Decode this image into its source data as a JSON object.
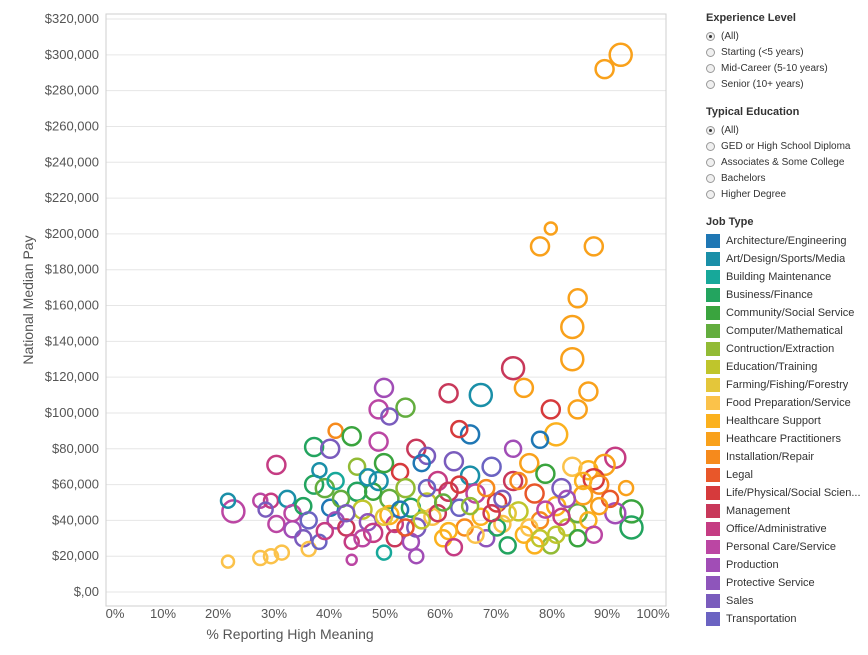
{
  "filters": {
    "experience": {
      "title": "Experience Level",
      "options": [
        "(All)",
        "Starting (<5 years)",
        "Mid-Career (5-10 years)",
        "Senior (10+ years)"
      ],
      "selected": 0
    },
    "education": {
      "title": "Typical Education",
      "options": [
        "(All)",
        "GED or High School Diploma",
        "Associates & Some College",
        "Bachelors",
        "Higher Degree"
      ],
      "selected": 0
    }
  },
  "job_type_legend": {
    "title": "Job Type",
    "items": [
      {
        "label": "Architecture/Engineering",
        "color": "#1f77b4"
      },
      {
        "label": "Art/Design/Sports/Media",
        "color": "#1a8fa8"
      },
      {
        "label": "Building Maintenance",
        "color": "#17a89a"
      },
      {
        "label": "Business/Finance",
        "color": "#23a45f"
      },
      {
        "label": "Community/Social Service",
        "color": "#3aa43e"
      },
      {
        "label": "Computer/Mathematical",
        "color": "#63ad3e"
      },
      {
        "label": "Contruction/Extraction",
        "color": "#92bb35"
      },
      {
        "label": "Education/Training",
        "color": "#bfc52c"
      },
      {
        "label": "Farming/Fishing/Forestry",
        "color": "#e4c63a"
      },
      {
        "label": "Food Preparation/Service",
        "color": "#fbc24a"
      },
      {
        "label": "Healthcare Support",
        "color": "#fbb11e"
      },
      {
        "label": "Heathcare Practitioners",
        "color": "#f9a11b"
      },
      {
        "label": "Installation/Repair",
        "color": "#f68a1c"
      },
      {
        "label": "Legal",
        "color": "#e8572a"
      },
      {
        "label": "Life/Physical/Social Scien...",
        "color": "#d63a3c"
      },
      {
        "label": "Management",
        "color": "#c8385a"
      },
      {
        "label": "Office/Administrative",
        "color": "#c53c83"
      },
      {
        "label": "Personal Care/Service",
        "color": "#bb46a3"
      },
      {
        "label": "Production",
        "color": "#a14db6"
      },
      {
        "label": "Protective Service",
        "color": "#8e55bb"
      },
      {
        "label": "Sales",
        "color": "#7a5cbd"
      },
      {
        "label": "Transportation",
        "color": "#6b63c2"
      }
    ]
  },
  "chart_data": {
    "type": "scatter",
    "subtype": "bubble",
    "xlabel": "% Reporting High Meaning",
    "ylabel": "National Median Pay",
    "xlim": [
      0,
      100
    ],
    "ylim": [
      0,
      320000
    ],
    "x_ticks": [
      "0%",
      "10%",
      "20%",
      "30%",
      "40%",
      "50%",
      "60%",
      "70%",
      "80%",
      "90%",
      "100%"
    ],
    "y_ticks": [
      "$,00",
      "$20,000",
      "$40,000",
      "$60,000",
      "$80,000",
      "$100,000",
      "$120,000",
      "$140,000",
      "$160,000",
      "$180,000",
      "$200,000",
      "$220,000",
      "$240,000",
      "$260,000",
      "$280,000",
      "$300,000",
      "$320,000"
    ],
    "points": [
      {
        "x": 94,
        "y": 300000,
        "r": 11,
        "job": "Heathcare Practitioners"
      },
      {
        "x": 91,
        "y": 292000,
        "r": 9,
        "job": "Heathcare Practitioners"
      },
      {
        "x": 81,
        "y": 203000,
        "r": 6,
        "job": "Heathcare Practitioners"
      },
      {
        "x": 79,
        "y": 193000,
        "r": 9,
        "job": "Heathcare Practitioners"
      },
      {
        "x": 89,
        "y": 193000,
        "r": 9,
        "job": "Heathcare Practitioners"
      },
      {
        "x": 86,
        "y": 164000,
        "r": 9,
        "job": "Heathcare Practitioners"
      },
      {
        "x": 85,
        "y": 148000,
        "r": 11,
        "job": "Heathcare Practitioners"
      },
      {
        "x": 85,
        "y": 130000,
        "r": 11,
        "job": "Heathcare Practitioners"
      },
      {
        "x": 74,
        "y": 125000,
        "r": 11,
        "job": "Management"
      },
      {
        "x": 76,
        "y": 114000,
        "r": 9,
        "job": "Heathcare Practitioners"
      },
      {
        "x": 68,
        "y": 110000,
        "r": 11,
        "job": "Art/Design/Sports/Media"
      },
      {
        "x": 62,
        "y": 111000,
        "r": 9,
        "job": "Management"
      },
      {
        "x": 88,
        "y": 112000,
        "r": 9,
        "job": "Heathcare Practitioners"
      },
      {
        "x": 50,
        "y": 114000,
        "r": 9,
        "job": "Production"
      },
      {
        "x": 54,
        "y": 103000,
        "r": 9,
        "job": "Computer/Mathematical"
      },
      {
        "x": 49,
        "y": 102000,
        "r": 9,
        "job": "Personal Care/Service"
      },
      {
        "x": 51,
        "y": 98000,
        "r": 8,
        "job": "Sales"
      },
      {
        "x": 81,
        "y": 102000,
        "r": 9,
        "job": "Life/Physical/Social Scien..."
      },
      {
        "x": 86,
        "y": 102000,
        "r": 9,
        "job": "Heathcare Practitioners"
      },
      {
        "x": 82,
        "y": 88000,
        "r": 11,
        "job": "Healthcare Support"
      },
      {
        "x": 66,
        "y": 88000,
        "r": 9,
        "job": "Architecture/Engineering"
      },
      {
        "x": 64,
        "y": 91000,
        "r": 8,
        "job": "Life/Physical/Social Scien..."
      },
      {
        "x": 79,
        "y": 85000,
        "r": 8,
        "job": "Architecture/Engineering"
      },
      {
        "x": 74,
        "y": 80000,
        "r": 8,
        "job": "Production"
      },
      {
        "x": 41,
        "y": 90000,
        "r": 7,
        "job": "Installation/Repair"
      },
      {
        "x": 44,
        "y": 87000,
        "r": 9,
        "job": "Community/Social Service"
      },
      {
        "x": 37,
        "y": 81000,
        "r": 9,
        "job": "Business/Finance"
      },
      {
        "x": 30,
        "y": 71000,
        "r": 9,
        "job": "Office/Administrative"
      },
      {
        "x": 40,
        "y": 80000,
        "r": 9,
        "job": "Sales"
      },
      {
        "x": 49,
        "y": 84000,
        "r": 9,
        "job": "Personal Care/Service"
      },
      {
        "x": 56,
        "y": 80000,
        "r": 9,
        "job": "Management"
      },
      {
        "x": 58,
        "y": 76000,
        "r": 8,
        "job": "Sales"
      },
      {
        "x": 93,
        "y": 75000,
        "r": 10,
        "job": "Office/Administrative"
      },
      {
        "x": 91,
        "y": 71000,
        "r": 10,
        "job": "Heathcare Practitioners"
      },
      {
        "x": 88,
        "y": 68000,
        "r": 9,
        "job": "Healthcare Support"
      },
      {
        "x": 89,
        "y": 63000,
        "r": 10,
        "job": "Life/Physical/Social Scien..."
      },
      {
        "x": 95,
        "y": 58000,
        "r": 7,
        "job": "Heathcare Practitioners"
      },
      {
        "x": 96,
        "y": 45000,
        "r": 11,
        "job": "Community/Social Service"
      },
      {
        "x": 96,
        "y": 36000,
        "r": 11,
        "job": "Business/Finance"
      },
      {
        "x": 93,
        "y": 44000,
        "r": 10,
        "job": "Production"
      },
      {
        "x": 22,
        "y": 45000,
        "r": 11,
        "job": "Personal Care/Service"
      },
      {
        "x": 21,
        "y": 51000,
        "r": 7,
        "job": "Art/Design/Sports/Media"
      },
      {
        "x": 21,
        "y": 17000,
        "r": 6,
        "job": "Food Preparation/Service"
      },
      {
        "x": 27,
        "y": 19000,
        "r": 7,
        "job": "Food Preparation/Service"
      },
      {
        "x": 29,
        "y": 20000,
        "r": 7,
        "job": "Food Preparation/Service"
      },
      {
        "x": 31,
        "y": 22000,
        "r": 7,
        "job": "Food Preparation/Service"
      },
      {
        "x": 27,
        "y": 51000,
        "r": 7,
        "job": "Personal Care/Service"
      },
      {
        "x": 29,
        "y": 51000,
        "r": 7,
        "job": "Office/Administrative"
      },
      {
        "x": 32,
        "y": 52000,
        "r": 8,
        "job": "Art/Design/Sports/Media"
      },
      {
        "x": 28,
        "y": 46000,
        "r": 7,
        "job": "Sales"
      },
      {
        "x": 30,
        "y": 38000,
        "r": 8,
        "job": "Personal Care/Service"
      },
      {
        "x": 33,
        "y": 35000,
        "r": 8,
        "job": "Production"
      },
      {
        "x": 33,
        "y": 44000,
        "r": 8,
        "job": "Personal Care/Service"
      },
      {
        "x": 35,
        "y": 30000,
        "r": 8,
        "job": "Sales"
      },
      {
        "x": 36,
        "y": 24000,
        "r": 7,
        "job": "Food Preparation/Service"
      },
      {
        "x": 38,
        "y": 28000,
        "r": 7,
        "job": "Transportation"
      },
      {
        "x": 37,
        "y": 60000,
        "r": 9,
        "job": "Business/Finance"
      },
      {
        "x": 39,
        "y": 58000,
        "r": 9,
        "job": "Computer/Mathematical"
      },
      {
        "x": 38,
        "y": 68000,
        "r": 7,
        "job": "Art/Design/Sports/Media"
      },
      {
        "x": 40,
        "y": 47000,
        "r": 8,
        "job": "Architecture/Engineering"
      },
      {
        "x": 41,
        "y": 40000,
        "r": 8,
        "job": "Production"
      },
      {
        "x": 43,
        "y": 36000,
        "r": 8,
        "job": "Management"
      },
      {
        "x": 44,
        "y": 28000,
        "r": 7,
        "job": "Office/Administrative"
      },
      {
        "x": 44,
        "y": 18000,
        "r": 5,
        "job": "Personal Care/Service"
      },
      {
        "x": 45,
        "y": 70000,
        "r": 8,
        "job": "Contruction/Extraction"
      },
      {
        "x": 45,
        "y": 56000,
        "r": 9,
        "job": "Business/Finance"
      },
      {
        "x": 46,
        "y": 46000,
        "r": 9,
        "job": "Education/Training"
      },
      {
        "x": 47,
        "y": 39000,
        "r": 8,
        "job": "Protective Service"
      },
      {
        "x": 48,
        "y": 33000,
        "r": 9,
        "job": "Office/Administrative"
      },
      {
        "x": 49,
        "y": 62000,
        "r": 9,
        "job": "Art/Design/Sports/Media"
      },
      {
        "x": 50,
        "y": 72000,
        "r": 9,
        "job": "Community/Social Service"
      },
      {
        "x": 51,
        "y": 52000,
        "r": 9,
        "job": "Computer/Mathematical"
      },
      {
        "x": 51,
        "y": 43000,
        "r": 9,
        "job": "Healthcare Support"
      },
      {
        "x": 52,
        "y": 30000,
        "r": 8,
        "job": "Management"
      },
      {
        "x": 50,
        "y": 22000,
        "r": 7,
        "job": "Building Maintenance"
      },
      {
        "x": 53,
        "y": 67000,
        "r": 8,
        "job": "Life/Physical/Social Scien..."
      },
      {
        "x": 54,
        "y": 58000,
        "r": 9,
        "job": "Contruction/Extraction"
      },
      {
        "x": 55,
        "y": 47000,
        "r": 9,
        "job": "Business/Finance"
      },
      {
        "x": 56,
        "y": 36000,
        "r": 9,
        "job": "Sales"
      },
      {
        "x": 56,
        "y": 20000,
        "r": 7,
        "job": "Production"
      },
      {
        "x": 57,
        "y": 72000,
        "r": 8,
        "job": "Architecture/Engineering"
      },
      {
        "x": 58,
        "y": 50000,
        "r": 9,
        "job": "Education/Training"
      },
      {
        "x": 59,
        "y": 42000,
        "r": 8,
        "job": "Food Preparation/Service"
      },
      {
        "x": 60,
        "y": 62000,
        "r": 9,
        "job": "Office/Administrative"
      },
      {
        "x": 61,
        "y": 30000,
        "r": 8,
        "job": "Healthcare Support"
      },
      {
        "x": 62,
        "y": 56000,
        "r": 9,
        "job": "Management"
      },
      {
        "x": 63,
        "y": 73000,
        "r": 9,
        "job": "Sales"
      },
      {
        "x": 64,
        "y": 47000,
        "r": 8,
        "job": "Transportation"
      },
      {
        "x": 65,
        "y": 36000,
        "r": 8,
        "job": "Installation/Repair"
      },
      {
        "x": 66,
        "y": 65000,
        "r": 9,
        "job": "Art/Design/Sports/Media"
      },
      {
        "x": 67,
        "y": 55000,
        "r": 9,
        "job": "Personal Care/Service"
      },
      {
        "x": 68,
        "y": 42000,
        "r": 8,
        "job": "Healthcare Support"
      },
      {
        "x": 69,
        "y": 30000,
        "r": 8,
        "job": "Protective Service"
      },
      {
        "x": 70,
        "y": 70000,
        "r": 9,
        "job": "Transportation"
      },
      {
        "x": 71,
        "y": 50000,
        "r": 9,
        "job": "Life/Physical/Social Scien..."
      },
      {
        "x": 72,
        "y": 38000,
        "r": 8,
        "job": "Food Preparation/Service"
      },
      {
        "x": 73,
        "y": 26000,
        "r": 8,
        "job": "Business/Finance"
      },
      {
        "x": 74,
        "y": 62000,
        "r": 9,
        "job": "Management"
      },
      {
        "x": 75,
        "y": 45000,
        "r": 9,
        "job": "Education/Training"
      },
      {
        "x": 76,
        "y": 32000,
        "r": 8,
        "job": "Healthcare Support"
      },
      {
        "x": 77,
        "y": 72000,
        "r": 9,
        "job": "Heathcare Practitioners"
      },
      {
        "x": 78,
        "y": 55000,
        "r": 9,
        "job": "Legal"
      },
      {
        "x": 79,
        "y": 40000,
        "r": 8,
        "job": "Installation/Repair"
      },
      {
        "x": 80,
        "y": 66000,
        "r": 9,
        "job": "Community/Social Service"
      },
      {
        "x": 81,
        "y": 26000,
        "r": 8,
        "job": "Contruction/Extraction"
      },
      {
        "x": 82,
        "y": 48000,
        "r": 9,
        "job": "Healthcare Support"
      },
      {
        "x": 83,
        "y": 58000,
        "r": 9,
        "job": "Sales"
      },
      {
        "x": 84,
        "y": 36000,
        "r": 8,
        "job": "Education/Training"
      },
      {
        "x": 85,
        "y": 70000,
        "r": 9,
        "job": "Food Preparation/Service"
      },
      {
        "x": 86,
        "y": 44000,
        "r": 9,
        "job": "Computer/Mathematical"
      },
      {
        "x": 87,
        "y": 54000,
        "r": 9,
        "job": "Heathcare Practitioners"
      },
      {
        "x": 88,
        "y": 40000,
        "r": 8,
        "job": "Healthcare Support"
      },
      {
        "x": 89,
        "y": 32000,
        "r": 8,
        "job": "Personal Care/Service"
      },
      {
        "x": 90,
        "y": 60000,
        "r": 9,
        "job": "Installation/Repair"
      },
      {
        "x": 92,
        "y": 52000,
        "r": 8,
        "job": "Legal"
      },
      {
        "x": 35,
        "y": 48000,
        "r": 8,
        "job": "Business/Finance"
      },
      {
        "x": 36,
        "y": 40000,
        "r": 8,
        "job": "Transportation"
      },
      {
        "x": 42,
        "y": 52000,
        "r": 8,
        "job": "Computer/Mathematical"
      },
      {
        "x": 43,
        "y": 44000,
        "r": 8,
        "job": "Sales"
      },
      {
        "x": 46,
        "y": 30000,
        "r": 8,
        "job": "Personal Care/Service"
      },
      {
        "x": 48,
        "y": 56000,
        "r": 8,
        "job": "Community/Social Service"
      },
      {
        "x": 52,
        "y": 38000,
        "r": 8,
        "job": "Office/Administrative"
      },
      {
        "x": 53,
        "y": 46000,
        "r": 8,
        "job": "Architecture/Engineering"
      },
      {
        "x": 55,
        "y": 28000,
        "r": 8,
        "job": "Production"
      },
      {
        "x": 57,
        "y": 40000,
        "r": 8,
        "job": "Education/Training"
      },
      {
        "x": 60,
        "y": 44000,
        "r": 8,
        "job": "Management"
      },
      {
        "x": 62,
        "y": 34000,
        "r": 8,
        "job": "Healthcare Support"
      },
      {
        "x": 63,
        "y": 25000,
        "r": 8,
        "job": "Office/Administrative"
      },
      {
        "x": 66,
        "y": 48000,
        "r": 8,
        "job": "Contruction/Extraction"
      },
      {
        "x": 69,
        "y": 58000,
        "r": 8,
        "job": "Installation/Repair"
      },
      {
        "x": 71,
        "y": 36000,
        "r": 8,
        "job": "Business/Finance"
      },
      {
        "x": 73,
        "y": 44000,
        "r": 8,
        "job": "Farming/Fishing/Forestry"
      },
      {
        "x": 77,
        "y": 36000,
        "r": 8,
        "job": "Food Preparation/Service"
      },
      {
        "x": 78,
        "y": 26000,
        "r": 8,
        "job": "Healthcare Support"
      },
      {
        "x": 80,
        "y": 46000,
        "r": 8,
        "job": "Personal Care/Service"
      },
      {
        "x": 82,
        "y": 32000,
        "r": 8,
        "job": "Education/Training"
      },
      {
        "x": 84,
        "y": 52000,
        "r": 8,
        "job": "Production"
      },
      {
        "x": 86,
        "y": 30000,
        "r": 8,
        "job": "Community/Social Service"
      },
      {
        "x": 87,
        "y": 62000,
        "r": 8,
        "job": "Healthcare Support"
      },
      {
        "x": 90,
        "y": 48000,
        "r": 8,
        "job": "Heathcare Practitioners"
      },
      {
        "x": 39,
        "y": 34000,
        "r": 8,
        "job": "Office/Administrative"
      },
      {
        "x": 41,
        "y": 62000,
        "r": 8,
        "job": "Building Maintenance"
      },
      {
        "x": 47,
        "y": 64000,
        "r": 8,
        "job": "Art/Design/Sports/Media"
      },
      {
        "x": 50,
        "y": 42000,
        "r": 8,
        "job": "Farming/Fishing/Forestry"
      },
      {
        "x": 54,
        "y": 36000,
        "r": 8,
        "job": "Legal"
      },
      {
        "x": 58,
        "y": 58000,
        "r": 8,
        "job": "Transportation"
      },
      {
        "x": 61,
        "y": 50000,
        "r": 8,
        "job": "Computer/Mathematical"
      },
      {
        "x": 64,
        "y": 60000,
        "r": 8,
        "job": "Life/Physical/Social Scien..."
      },
      {
        "x": 67,
        "y": 32000,
        "r": 8,
        "job": "Food Preparation/Service"
      },
      {
        "x": 70,
        "y": 44000,
        "r": 8,
        "job": "Management"
      },
      {
        "x": 72,
        "y": 52000,
        "r": 8,
        "job": "Sales"
      },
      {
        "x": 75,
        "y": 62000,
        "r": 8,
        "job": "Installation/Repair"
      },
      {
        "x": 79,
        "y": 30000,
        "r": 8,
        "job": "Education/Training"
      },
      {
        "x": 83,
        "y": 42000,
        "r": 8,
        "job": "Office/Administrative"
      }
    ]
  }
}
